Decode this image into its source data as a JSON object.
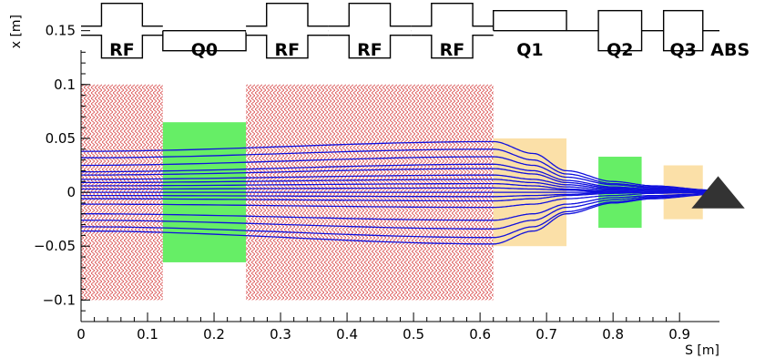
{
  "chart_data": {
    "type": "line",
    "title": "",
    "xlabel": "S [m]",
    "ylabel": "x [m]",
    "xlim": [
      0,
      0.96
    ],
    "ylim": [
      -0.12,
      0.17
    ],
    "x_ticks": [
      {
        "value": 0,
        "label": "0"
      },
      {
        "value": 0.1,
        "label": "0.1"
      },
      {
        "value": 0.2,
        "label": "0.2"
      },
      {
        "value": 0.3,
        "label": "0.3"
      },
      {
        "value": 0.4,
        "label": "0.4"
      },
      {
        "value": 0.5,
        "label": "0.5"
      },
      {
        "value": 0.6,
        "label": "0.6"
      },
      {
        "value": 0.7,
        "label": "0.7"
      },
      {
        "value": 0.8,
        "label": "0.8"
      },
      {
        "value": 0.9,
        "label": "0.9"
      }
    ],
    "y_ticks": [
      {
        "value": 0.15,
        "label": "0.15"
      },
      {
        "value": 0.1,
        "label": "0.1"
      },
      {
        "value": 0.05,
        "label": "0.05"
      },
      {
        "value": 0,
        "label": "0"
      },
      {
        "value": -0.05,
        "label": "−0.05"
      },
      {
        "value": -0.1,
        "label": "−0.1"
      }
    ],
    "elements": [
      {
        "name": "RF",
        "type": "rf",
        "s_start": 0.0,
        "s_end": 0.123,
        "half_aperture": 0.1,
        "color": "#e06a6a"
      },
      {
        "name": "Q0",
        "type": "quad",
        "s_start": 0.123,
        "s_end": 0.248,
        "half_aperture": 0.065,
        "color": "#66ee66"
      },
      {
        "name": "RF",
        "type": "rf",
        "s_start": 0.248,
        "s_end": 0.372,
        "half_aperture": 0.1,
        "color": "#e06a6a"
      },
      {
        "name": "RF",
        "type": "rf",
        "s_start": 0.372,
        "s_end": 0.496,
        "half_aperture": 0.1,
        "color": "#e06a6a"
      },
      {
        "name": "RF",
        "type": "rf",
        "s_start": 0.496,
        "s_end": 0.62,
        "half_aperture": 0.1,
        "color": "#e06a6a"
      },
      {
        "name": "Q1",
        "type": "quad",
        "s_start": 0.62,
        "s_end": 0.73,
        "half_aperture": 0.05,
        "color": "#fbe0a8"
      },
      {
        "name": "Q2",
        "type": "quad",
        "s_start": 0.778,
        "s_end": 0.843,
        "half_aperture": 0.033,
        "color": "#66ee66"
      },
      {
        "name": "Q3",
        "type": "quad",
        "s_start": 0.876,
        "s_end": 0.935,
        "half_aperture": 0.025,
        "color": "#fbe0a8"
      },
      {
        "name": "ABS",
        "type": "absorber",
        "s_start": 0.918,
        "s_end": 0.998,
        "half_aperture": 0.015,
        "color": "#333333"
      }
    ],
    "trajectories": {
      "color": "#1010dd",
      "s_points": [
        0,
        0.62,
        0.68,
        0.73,
        0.8,
        0.86,
        0.95
      ],
      "series": [
        {
          "values": [
            0.038,
            0.047,
            0.036,
            0.02,
            0.01,
            0.006,
            0.002
          ]
        },
        {
          "values": [
            0.032,
            0.04,
            0.03,
            0.017,
            0.008,
            0.005,
            0.002
          ]
        },
        {
          "values": [
            0.025,
            0.033,
            0.025,
            0.014,
            0.007,
            0.004,
            0.001
          ]
        },
        {
          "values": [
            0.019,
            0.026,
            0.02,
            0.011,
            0.005,
            0.003,
            0.001
          ]
        },
        {
          "values": [
            0.016,
            0.022,
            0.017,
            0.009,
            0.004,
            0.002,
            0.001
          ]
        },
        {
          "values": [
            0.012,
            0.016,
            0.012,
            0.007,
            0.003,
            0.002,
            0.0
          ]
        },
        {
          "values": [
            0.009,
            0.012,
            0.009,
            0.005,
            0.002,
            0.001,
            0.0
          ]
        },
        {
          "values": [
            0.006,
            0.008,
            0.006,
            0.003,
            0.001,
            0.0,
            0.0
          ]
        },
        {
          "values": [
            0.003,
            0.004,
            0.003,
            0.002,
            0.0,
            0.0,
            0.0
          ]
        },
        {
          "values": [
            0.0,
            0.0,
            0.0,
            0.0,
            0.0,
            0.0,
            0.0
          ]
        },
        {
          "values": [
            -0.003,
            -0.004,
            -0.003,
            -0.002,
            0.0,
            0.0,
            0.0
          ]
        },
        {
          "values": [
            -0.006,
            -0.008,
            -0.006,
            -0.003,
            -0.001,
            0.0,
            0.0
          ]
        },
        {
          "values": [
            -0.011,
            -0.014,
            -0.011,
            -0.006,
            -0.003,
            -0.001,
            0.0
          ]
        },
        {
          "values": [
            -0.02,
            -0.026,
            -0.02,
            -0.011,
            -0.005,
            -0.003,
            -0.001
          ]
        },
        {
          "values": [
            -0.026,
            -0.034,
            -0.026,
            -0.014,
            -0.007,
            -0.004,
            -0.001
          ]
        },
        {
          "values": [
            -0.032,
            -0.042,
            -0.032,
            -0.018,
            -0.009,
            -0.005,
            -0.002
          ]
        },
        {
          "values": [
            -0.036,
            -0.048,
            -0.036,
            -0.02,
            -0.01,
            -0.006,
            -0.002
          ]
        }
      ]
    }
  }
}
